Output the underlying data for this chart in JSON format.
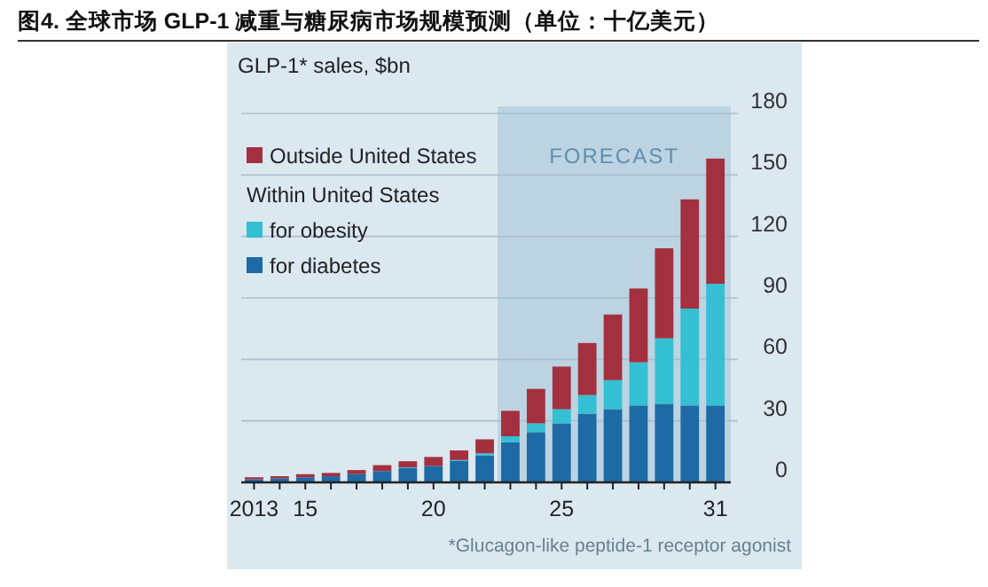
{
  "chart_data": {
    "type": "bar",
    "stacked": true,
    "title": "图4. 全球市场 GLP-1 减重与糖尿病市场规模预测（单位：十亿美元）",
    "subtitle": "GLP-1* sales, $bn",
    "annotations": [
      "Within United States",
      "*Glucagon-like peptide-1 receptor agonist"
    ],
    "x": [
      2013,
      2014,
      2015,
      2016,
      2017,
      2018,
      2019,
      2020,
      2021,
      2022,
      2023,
      2024,
      2025,
      2026,
      2027,
      2028,
      2029,
      2030,
      2031
    ],
    "xlim": [
      2012.5,
      2031.6
    ],
    "xticks": [
      {
        "value": 2013,
        "label": "2013"
      },
      {
        "value": 2014,
        "label": null
      },
      {
        "value": 2015,
        "label": "15"
      },
      {
        "value": 2016,
        "label": null
      },
      {
        "value": 2017,
        "label": null
      },
      {
        "value": 2018,
        "label": null
      },
      {
        "value": 2019,
        "label": null
      },
      {
        "value": 2020,
        "label": "20"
      },
      {
        "value": 2021,
        "label": null
      },
      {
        "value": 2022,
        "label": null
      },
      {
        "value": 2023,
        "label": null
      },
      {
        "value": 2024,
        "label": null
      },
      {
        "value": 2025,
        "label": "25"
      },
      {
        "value": 2026,
        "label": null
      },
      {
        "value": 2027,
        "label": null
      },
      {
        "value": 2028,
        "label": null
      },
      {
        "value": 2029,
        "label": null
      },
      {
        "value": 2030,
        "label": null
      },
      {
        "value": 2031,
        "label": "31"
      }
    ],
    "ylim": [
      0,
      180
    ],
    "yticks": [
      0,
      30,
      60,
      90,
      120,
      150,
      180
    ],
    "grid": "y",
    "legend": "top left",
    "bands": [
      {
        "axis": "x",
        "from": 2022.5,
        "to": 2031.6,
        "label": "FORECAST",
        "color": "#bcd3e1"
      }
    ],
    "series": [
      {
        "name": "for diabetes",
        "color": "#1d6aa5",
        "values": [
          1.5,
          2,
          2.5,
          3,
          4,
          5.5,
          7,
          8,
          10.4,
          13.2,
          19.6,
          24.5,
          28.8,
          33.5,
          35.7,
          37.5,
          38.3,
          37.5,
          37.5
        ]
      },
      {
        "name": "for obesity",
        "color": "#34bfd3",
        "values": [
          0,
          0,
          0,
          0,
          0,
          0,
          0.3,
          0,
          0.5,
          1,
          2.9,
          4.3,
          6.9,
          9.1,
          14.2,
          21.1,
          32,
          47.3,
          59.4
        ]
      },
      {
        "name": "Outside United States",
        "color": "#a3303f",
        "values": [
          1,
          1,
          1.5,
          1.6,
          2,
          2.9,
          3,
          4.4,
          4.7,
          6.8,
          12.4,
          16.8,
          20.8,
          25.4,
          32,
          36,
          43.9,
          53.3,
          61.1
        ]
      }
    ]
  }
}
